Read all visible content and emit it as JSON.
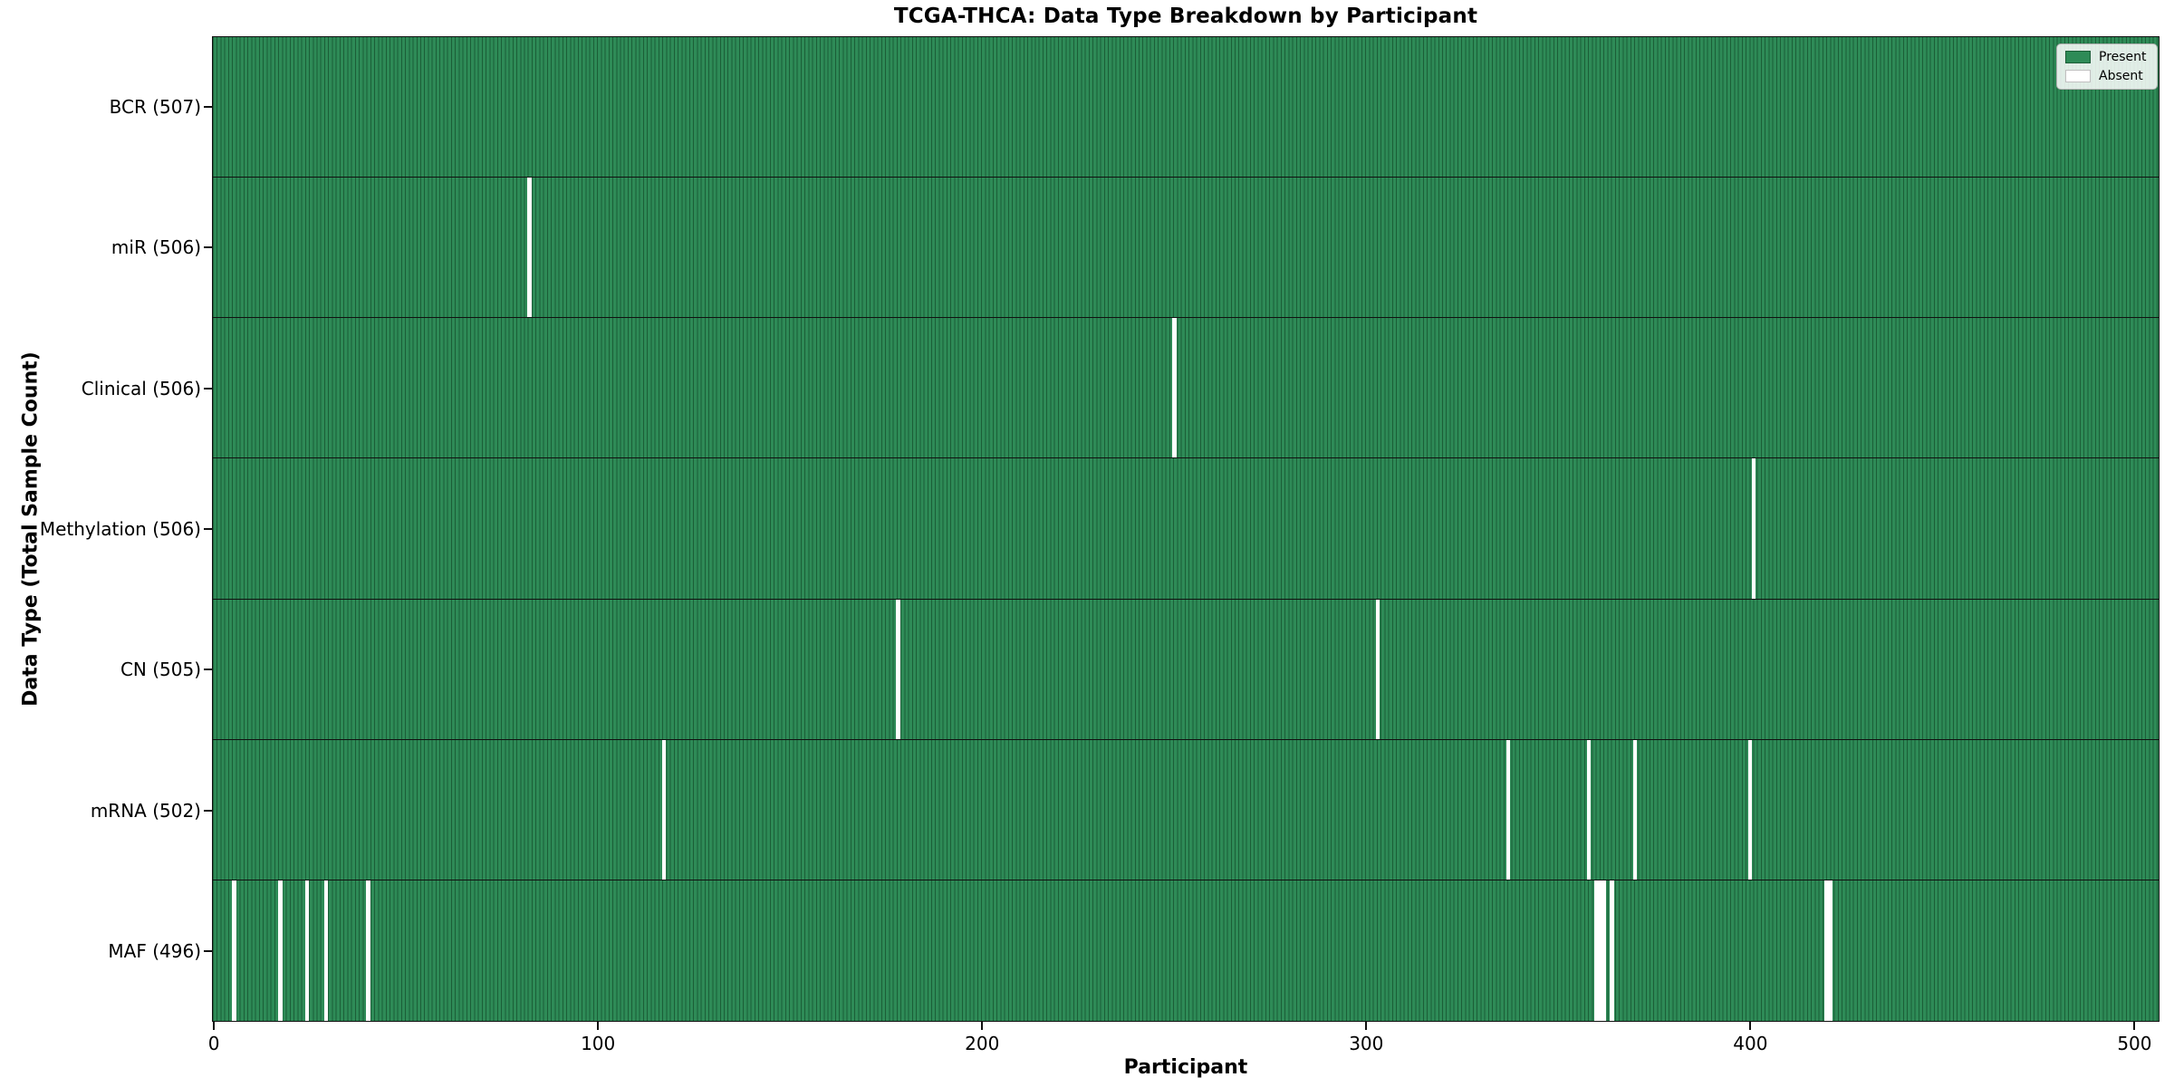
{
  "title": "TCGA-THCA: Data Type Breakdown by Participant",
  "xlabel": "Participant",
  "ylabel": "Data Type (Total Sample Count)",
  "colors": {
    "present_fill": "#2e8b57",
    "bar_edge": "#1b5e37",
    "absent_fill": "#ffffff",
    "frame": "#111111",
    "legend_border": "#b0b0b0"
  },
  "legend": [
    {
      "label": "Present",
      "color": "#2e8b57",
      "edge": "#1b5e37"
    },
    {
      "label": "Absent",
      "color": "#ffffff",
      "edge": "#c0c0c0"
    }
  ],
  "chart_data": {
    "type": "heatmap",
    "title": "TCGA-THCA: Data Type Breakdown by Participant",
    "xlabel": "Participant",
    "ylabel": "Data Type (Total Sample Count)",
    "n_participants": 507,
    "x_ticks": [
      0,
      100,
      200,
      300,
      400,
      500
    ],
    "xlim": [
      0,
      507
    ],
    "grid": false,
    "legend_position": "upper right",
    "cell_values": {
      "present": 1,
      "absent": 0
    },
    "rows": [
      {
        "data_type": "BCR",
        "label": "BCR (507)",
        "total_samples": 507,
        "absent_participants": []
      },
      {
        "data_type": "miR",
        "label": "miR (506)",
        "total_samples": 506,
        "absent_participants": [
          82
        ]
      },
      {
        "data_type": "Clinical",
        "label": "Clinical (506)",
        "total_samples": 506,
        "absent_participants": [
          250
        ]
      },
      {
        "data_type": "Methylation",
        "label": "Methylation (506)",
        "total_samples": 506,
        "absent_participants": [
          401
        ]
      },
      {
        "data_type": "CN",
        "label": "CN (505)",
        "total_samples": 505,
        "absent_participants": [
          178,
          303
        ]
      },
      {
        "data_type": "mRNA",
        "label": "mRNA (502)",
        "total_samples": 502,
        "absent_participants": [
          117,
          337,
          358,
          370,
          400
        ]
      },
      {
        "data_type": "MAF",
        "label": "MAF (496)",
        "total_samples": 496,
        "absent_participants": [
          5,
          17,
          24,
          29,
          40,
          360,
          361,
          362,
          364,
          420,
          421
        ]
      }
    ]
  }
}
